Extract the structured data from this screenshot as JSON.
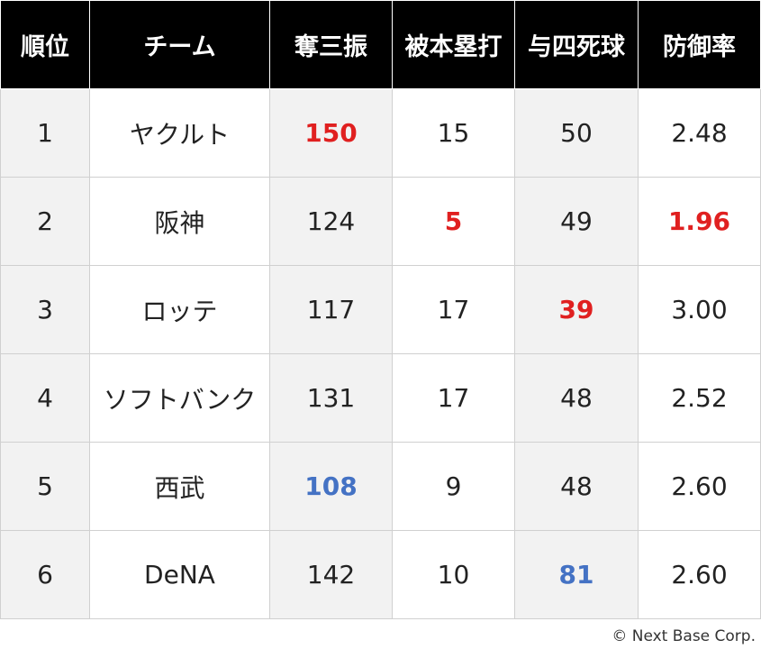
{
  "colors": {
    "header_bg": "#000000",
    "header_text": "#ffffff",
    "highlight_red": "#e02020",
    "highlight_blue": "#4472c4",
    "shade": "#f2f2f2"
  },
  "table": {
    "headers": [
      "順位",
      "チーム",
      "奪三振",
      "被本塁打",
      "与四死球",
      "防御率"
    ],
    "rows": [
      {
        "rank": "1",
        "team": "ヤクルト",
        "strikeouts": "150",
        "home_runs_allowed": "15",
        "walks_hbp": "50",
        "era": "2.48"
      },
      {
        "rank": "2",
        "team": "阪神",
        "strikeouts": "124",
        "home_runs_allowed": "5",
        "walks_hbp": "49",
        "era": "1.96"
      },
      {
        "rank": "3",
        "team": "ロッテ",
        "strikeouts": "117",
        "home_runs_allowed": "17",
        "walks_hbp": "39",
        "era": "3.00"
      },
      {
        "rank": "4",
        "team": "ソフトバンク",
        "strikeouts": "131",
        "home_runs_allowed": "17",
        "walks_hbp": "48",
        "era": "2.52"
      },
      {
        "rank": "5",
        "team": "西武",
        "strikeouts": "108",
        "home_runs_allowed": "9",
        "walks_hbp": "48",
        "era": "2.60"
      },
      {
        "rank": "6",
        "team": "DeNA",
        "strikeouts": "142",
        "home_runs_allowed": "10",
        "walks_hbp": "81",
        "era": "2.60"
      }
    ]
  },
  "footer": {
    "copyright": "© Next Base Corp."
  }
}
